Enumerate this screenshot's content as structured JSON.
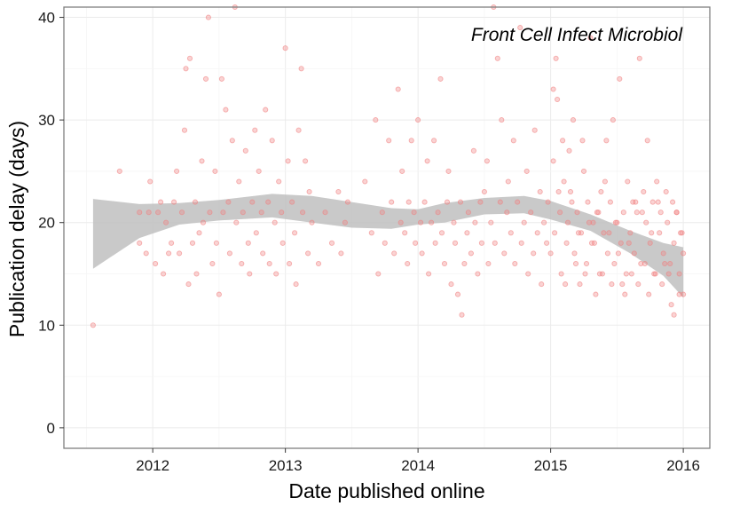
{
  "chart_data": {
    "type": "scatter",
    "title": "",
    "annotation": "Front Cell Infect Microbiol",
    "xlabel": "Date published online",
    "ylabel": "Publication delay (days)",
    "x_ticks": [
      {
        "value": 2012,
        "label": "2012"
      },
      {
        "value": 2013,
        "label": "2013"
      },
      {
        "value": 2014,
        "label": "2014"
      },
      {
        "value": 2015,
        "label": "2015"
      },
      {
        "value": 2016,
        "label": "2016"
      }
    ],
    "y_ticks": [
      {
        "value": 0,
        "label": "0"
      },
      {
        "value": 10,
        "label": "10"
      },
      {
        "value": 20,
        "label": "20"
      },
      {
        "value": 30,
        "label": "30"
      },
      {
        "value": 40,
        "label": "40"
      }
    ],
    "xlim": [
      2011.33,
      2016.2
    ],
    "ylim": [
      -2,
      41
    ],
    "grid": true,
    "point_color": "#f08080",
    "smooth_color": "#bfbfbf",
    "smooth": {
      "x": [
        2011.55,
        2011.9,
        2012.2,
        2012.5,
        2012.9,
        2013.2,
        2013.5,
        2013.8,
        2014.0,
        2014.2,
        2014.5,
        2014.8,
        2015.0,
        2015.3,
        2015.6,
        2015.85,
        2016.0
      ],
      "lower": [
        15.5,
        18.5,
        19.8,
        20.2,
        20.5,
        20.0,
        19.5,
        19.4,
        19.8,
        20.0,
        20.8,
        20.9,
        20.3,
        19.2,
        17.0,
        14.8,
        12.7
      ],
      "upper": [
        22.3,
        21.8,
        21.9,
        22.2,
        22.8,
        22.6,
        22.0,
        21.4,
        21.3,
        21.9,
        22.4,
        22.6,
        22.1,
        20.8,
        19.2,
        18.0,
        17.6
      ]
    },
    "series": [
      {
        "points": [
          [
            2011.55,
            10
          ],
          [
            2011.9,
            18
          ],
          [
            2011.9,
            21
          ],
          [
            2011.75,
            25
          ],
          [
            2011.95,
            17
          ],
          [
            2011.97,
            21
          ],
          [
            2011.98,
            24
          ],
          [
            2012.02,
            16
          ],
          [
            2012.04,
            21
          ],
          [
            2012.06,
            22
          ],
          [
            2012.08,
            15
          ],
          [
            2012.1,
            20
          ],
          [
            2012.12,
            17
          ],
          [
            2012.14,
            18
          ],
          [
            2012.16,
            22
          ],
          [
            2012.18,
            25
          ],
          [
            2012.2,
            17
          ],
          [
            2012.22,
            21
          ],
          [
            2012.24,
            29
          ],
          [
            2012.25,
            35
          ],
          [
            2012.27,
            14
          ],
          [
            2012.28,
            36
          ],
          [
            2012.3,
            18
          ],
          [
            2012.32,
            22
          ],
          [
            2012.33,
            15
          ],
          [
            2012.35,
            19
          ],
          [
            2012.37,
            26
          ],
          [
            2012.38,
            20
          ],
          [
            2012.4,
            34
          ],
          [
            2012.42,
            40
          ],
          [
            2012.43,
            21
          ],
          [
            2012.45,
            16
          ],
          [
            2012.47,
            25
          ],
          [
            2012.48,
            18
          ],
          [
            2012.5,
            13
          ],
          [
            2012.52,
            34
          ],
          [
            2012.53,
            21
          ],
          [
            2012.55,
            31
          ],
          [
            2012.57,
            22
          ],
          [
            2012.58,
            17
          ],
          [
            2012.6,
            28
          ],
          [
            2012.62,
            41
          ],
          [
            2012.63,
            20
          ],
          [
            2012.65,
            24
          ],
          [
            2012.67,
            16
          ],
          [
            2012.68,
            21
          ],
          [
            2012.7,
            27
          ],
          [
            2012.72,
            18
          ],
          [
            2012.73,
            15
          ],
          [
            2012.75,
            22
          ],
          [
            2012.77,
            29
          ],
          [
            2012.78,
            19
          ],
          [
            2012.8,
            25
          ],
          [
            2012.82,
            21
          ],
          [
            2012.83,
            17
          ],
          [
            2012.85,
            31
          ],
          [
            2012.87,
            22
          ],
          [
            2012.88,
            16
          ],
          [
            2012.9,
            28
          ],
          [
            2012.92,
            20
          ],
          [
            2012.93,
            15
          ],
          [
            2012.95,
            24
          ],
          [
            2012.97,
            21
          ],
          [
            2012.98,
            18
          ],
          [
            2013.0,
            37
          ],
          [
            2013.02,
            26
          ],
          [
            2013.03,
            16
          ],
          [
            2013.05,
            22
          ],
          [
            2013.07,
            19
          ],
          [
            2013.08,
            14
          ],
          [
            2013.1,
            29
          ],
          [
            2013.12,
            35
          ],
          [
            2013.13,
            21
          ],
          [
            2013.15,
            26
          ],
          [
            2013.17,
            17
          ],
          [
            2013.18,
            23
          ],
          [
            2013.2,
            20
          ],
          [
            2013.25,
            16
          ],
          [
            2013.3,
            21
          ],
          [
            2013.35,
            18
          ],
          [
            2013.4,
            23
          ],
          [
            2013.42,
            17
          ],
          [
            2013.45,
            20
          ],
          [
            2013.47,
            22
          ],
          [
            2013.6,
            24
          ],
          [
            2013.65,
            19
          ],
          [
            2013.68,
            30
          ],
          [
            2013.7,
            15
          ],
          [
            2013.73,
            21
          ],
          [
            2013.75,
            18
          ],
          [
            2013.78,
            28
          ],
          [
            2013.8,
            22
          ],
          [
            2013.82,
            17
          ],
          [
            2013.85,
            33
          ],
          [
            2013.87,
            20
          ],
          [
            2013.88,
            25
          ],
          [
            2013.9,
            19
          ],
          [
            2013.92,
            16
          ],
          [
            2013.93,
            22
          ],
          [
            2013.95,
            28
          ],
          [
            2013.97,
            21
          ],
          [
            2013.98,
            18
          ],
          [
            2014.0,
            30
          ],
          [
            2014.02,
            20
          ],
          [
            2014.03,
            17
          ],
          [
            2014.05,
            22
          ],
          [
            2014.07,
            26
          ],
          [
            2014.08,
            15
          ],
          [
            2014.1,
            20
          ],
          [
            2014.12,
            28
          ],
          [
            2014.13,
            18
          ],
          [
            2014.15,
            21
          ],
          [
            2014.17,
            34
          ],
          [
            2014.18,
            19
          ],
          [
            2014.2,
            16
          ],
          [
            2014.22,
            22
          ],
          [
            2014.23,
            25
          ],
          [
            2014.25,
            14
          ],
          [
            2014.27,
            20
          ],
          [
            2014.28,
            18
          ],
          [
            2014.3,
            13
          ],
          [
            2014.32,
            22
          ],
          [
            2014.33,
            11
          ],
          [
            2014.35,
            16
          ],
          [
            2014.37,
            19
          ],
          [
            2014.38,
            21
          ],
          [
            2014.4,
            17
          ],
          [
            2014.42,
            27
          ],
          [
            2014.43,
            20
          ],
          [
            2014.45,
            15
          ],
          [
            2014.47,
            22
          ],
          [
            2014.48,
            18
          ],
          [
            2014.5,
            23
          ],
          [
            2014.52,
            26
          ],
          [
            2014.53,
            16
          ],
          [
            2014.55,
            20
          ],
          [
            2014.57,
            41
          ],
          [
            2014.58,
            18
          ],
          [
            2014.6,
            36
          ],
          [
            2014.62,
            22
          ],
          [
            2014.63,
            30
          ],
          [
            2014.65,
            17
          ],
          [
            2014.67,
            21
          ],
          [
            2014.68,
            24
          ],
          [
            2014.7,
            19
          ],
          [
            2014.72,
            28
          ],
          [
            2014.73,
            16
          ],
          [
            2014.75,
            22
          ],
          [
            2014.77,
            39
          ],
          [
            2014.78,
            18
          ],
          [
            2014.8,
            20
          ],
          [
            2014.82,
            25
          ],
          [
            2014.83,
            15
          ],
          [
            2014.85,
            21
          ],
          [
            2014.87,
            17
          ],
          [
            2014.88,
            29
          ],
          [
            2014.9,
            19
          ],
          [
            2014.92,
            23
          ],
          [
            2014.93,
            14
          ],
          [
            2014.95,
            20
          ],
          [
            2014.97,
            18
          ],
          [
            2014.98,
            22
          ],
          [
            2015.0,
            17
          ],
          [
            2015.02,
            26
          ],
          [
            2015.03,
            19
          ],
          [
            2015.05,
            32
          ],
          [
            2015.07,
            21
          ],
          [
            2015.08,
            15
          ],
          [
            2015.1,
            24
          ],
          [
            2015.12,
            18
          ],
          [
            2015.13,
            20
          ],
          [
            2015.15,
            23
          ],
          [
            2015.17,
            30
          ],
          [
            2015.18,
            17
          ],
          [
            2015.2,
            21
          ],
          [
            2015.22,
            14
          ],
          [
            2015.23,
            19
          ],
          [
            2015.25,
            25
          ],
          [
            2015.27,
            16
          ],
          [
            2015.28,
            22
          ],
          [
            2015.3,
            38
          ],
          [
            2015.32,
            20
          ],
          [
            2015.33,
            18
          ],
          [
            2015.35,
            21
          ],
          [
            2015.37,
            15
          ],
          [
            2015.38,
            23
          ],
          [
            2015.4,
            19
          ],
          [
            2015.42,
            28
          ],
          [
            2015.43,
            17
          ],
          [
            2015.45,
            22
          ],
          [
            2015.47,
            30
          ],
          [
            2015.48,
            16
          ],
          [
            2015.5,
            20
          ],
          [
            2015.52,
            34
          ],
          [
            2015.53,
            18
          ],
          [
            2015.55,
            21
          ],
          [
            2015.57,
            15
          ],
          [
            2015.58,
            24
          ],
          [
            2015.6,
            19
          ],
          [
            2015.62,
            22
          ],
          [
            2015.63,
            17
          ],
          [
            2015.65,
            21
          ],
          [
            2015.67,
            36
          ],
          [
            2015.68,
            16
          ],
          [
            2015.7,
            23
          ],
          [
            2015.72,
            20
          ],
          [
            2015.73,
            28
          ],
          [
            2015.75,
            18
          ],
          [
            2015.77,
            22
          ],
          [
            2015.78,
            15
          ],
          [
            2015.8,
            24
          ],
          [
            2015.82,
            19
          ],
          [
            2015.83,
            21
          ],
          [
            2015.85,
            17
          ],
          [
            2015.87,
            23
          ],
          [
            2015.88,
            20
          ],
          [
            2015.9,
            16
          ],
          [
            2015.92,
            22
          ],
          [
            2015.93,
            18
          ],
          [
            2015.95,
            21
          ],
          [
            2015.97,
            15
          ],
          [
            2015.98,
            19
          ],
          [
            2015.02,
            33
          ],
          [
            2015.04,
            36
          ],
          [
            2015.06,
            23
          ],
          [
            2015.09,
            28
          ],
          [
            2015.11,
            14
          ],
          [
            2015.14,
            27
          ],
          [
            2015.16,
            22
          ],
          [
            2015.19,
            16
          ],
          [
            2015.21,
            19
          ],
          [
            2015.24,
            28
          ],
          [
            2015.26,
            15
          ],
          [
            2015.29,
            20
          ],
          [
            2015.31,
            18
          ],
          [
            2015.34,
            13
          ],
          [
            2015.36,
            21
          ],
          [
            2015.39,
            15
          ],
          [
            2015.41,
            24
          ],
          [
            2015.44,
            19
          ],
          [
            2015.46,
            14
          ],
          [
            2015.49,
            20
          ],
          [
            2015.51,
            17
          ],
          [
            2015.54,
            14
          ],
          [
            2015.56,
            13
          ],
          [
            2015.59,
            18
          ],
          [
            2015.61,
            15
          ],
          [
            2015.64,
            22
          ],
          [
            2015.66,
            14
          ],
          [
            2015.69,
            21
          ],
          [
            2015.71,
            16
          ],
          [
            2015.74,
            13
          ],
          [
            2015.76,
            19
          ],
          [
            2015.79,
            15
          ],
          [
            2015.81,
            22
          ],
          [
            2015.84,
            14
          ],
          [
            2015.86,
            16
          ],
          [
            2015.89,
            15
          ],
          [
            2015.91,
            12
          ],
          [
            2015.93,
            11
          ],
          [
            2015.95,
            21
          ],
          [
            2015.97,
            13
          ],
          [
            2015.99,
            19
          ],
          [
            2016.0,
            17
          ],
          [
            2016.0,
            13
          ]
        ]
      }
    ]
  }
}
